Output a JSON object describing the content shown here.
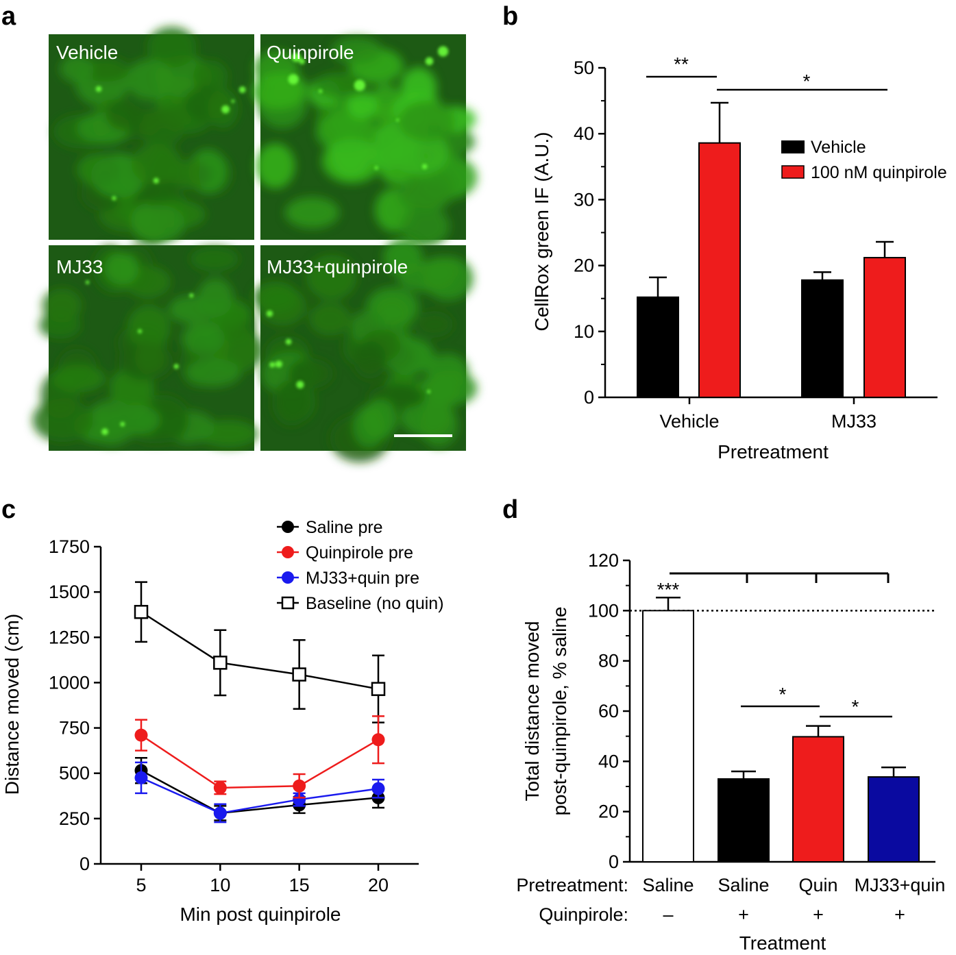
{
  "panels": {
    "a": "a",
    "b": "b",
    "c": "c",
    "d": "d"
  },
  "colors": {
    "black": "#000000",
    "red": "#ee1c1c",
    "blue": "#1a1aee",
    "dark_blue": "#0a0aa0",
    "white": "#ffffff",
    "green_cells": "#2f8f1f"
  },
  "chart_data": [
    {
      "panel": "a",
      "type": "image-grid",
      "labels": [
        "Vehicle",
        "Quinpirole",
        "MJ33",
        "MJ33+quinpirole"
      ]
    },
    {
      "panel": "b",
      "type": "bar",
      "ylabel": "CellRox green IF (A.U.)",
      "xlabel": "Pretreatment",
      "categories": [
        "Vehicle",
        "MJ33"
      ],
      "ylim": [
        0,
        50
      ],
      "yticks": [
        "0",
        "10",
        "20",
        "30",
        "40",
        "50"
      ],
      "series": [
        {
          "name": "Vehicle",
          "color": "#000000",
          "values": [
            15.2,
            17.8
          ],
          "errors": [
            3.0,
            1.2
          ]
        },
        {
          "name": "100 nM quinpirole",
          "color": "#ee1c1c",
          "values": [
            38.6,
            21.2
          ],
          "errors": [
            6.1,
            2.4
          ]
        }
      ],
      "significance": [
        {
          "label": "**",
          "from": "Vehicle/Vehicle",
          "to": "Vehicle/100 nM quinpirole",
          "y": 48.5
        },
        {
          "label": "*",
          "from": "Vehicle/100 nM quinpirole",
          "to": "MJ33/100 nM quinpirole",
          "y": 46.0
        }
      ]
    },
    {
      "panel": "c",
      "type": "line",
      "xlabel": "Min post quinpirole",
      "ylabel": "Distance moved (cm)",
      "x": [
        5,
        10,
        15,
        20
      ],
      "xticks": [
        "5",
        "10",
        "15",
        "20"
      ],
      "ylim": [
        0,
        1750
      ],
      "yticks": [
        "0",
        "250",
        "500",
        "750",
        "1000",
        "1250",
        "1500",
        "1750"
      ],
      "series": [
        {
          "name": "Saline pre",
          "color": "#000000",
          "marker": "circle",
          "values": [
            515,
            280,
            325,
            365
          ],
          "errors": [
            70,
            40,
            45,
            55
          ]
        },
        {
          "name": "Quinpirole pre",
          "color": "#ee1c1c",
          "marker": "circle",
          "values": [
            710,
            420,
            430,
            685
          ],
          "errors": [
            85,
            35,
            65,
            130
          ]
        },
        {
          "name": "MJ33+quin pre",
          "color": "#1a1aee",
          "marker": "circle",
          "values": [
            475,
            280,
            355,
            415
          ],
          "errors": [
            85,
            50,
            35,
            50
          ]
        },
        {
          "name": "Baseline (no quin)",
          "color": "#000000",
          "marker": "open-square",
          "values": [
            1390,
            1110,
            1045,
            965
          ],
          "errors": [
            165,
            180,
            190,
            185
          ]
        }
      ]
    },
    {
      "panel": "d",
      "type": "bar",
      "ylabel_line1": "Total distance moved",
      "ylabel_line2": "post-quinpirole, % saline",
      "xlabel": "Treatment",
      "ylim": [
        0,
        120
      ],
      "yticks": [
        "0",
        "20",
        "40",
        "60",
        "80",
        "100",
        "120"
      ],
      "row_labels": {
        "pretreatment": "Pretreatment:",
        "quinpirole": "Quinpirole:"
      },
      "bars": [
        {
          "pretreatment": "Saline",
          "quinpirole": "–",
          "value": 100,
          "error": 5.2,
          "color": "#ffffff"
        },
        {
          "pretreatment": "Saline",
          "quinpirole": "+",
          "value": 33,
          "error": 3.0,
          "color": "#000000"
        },
        {
          "pretreatment": "Quin",
          "quinpirole": "+",
          "value": 49.8,
          "error": 4.3,
          "color": "#ee1c1c"
        },
        {
          "pretreatment": "MJ33+quin",
          "quinpirole": "+",
          "value": 33.8,
          "error": 3.8,
          "color": "#0a0aa0"
        }
      ],
      "reference_line": 100,
      "significance": [
        {
          "label": "***",
          "bar": 0
        },
        {
          "label": "*",
          "from": 1,
          "to": 2,
          "y": 62
        },
        {
          "label": "*",
          "from": 2,
          "to": 3,
          "y": 57
        }
      ]
    }
  ]
}
